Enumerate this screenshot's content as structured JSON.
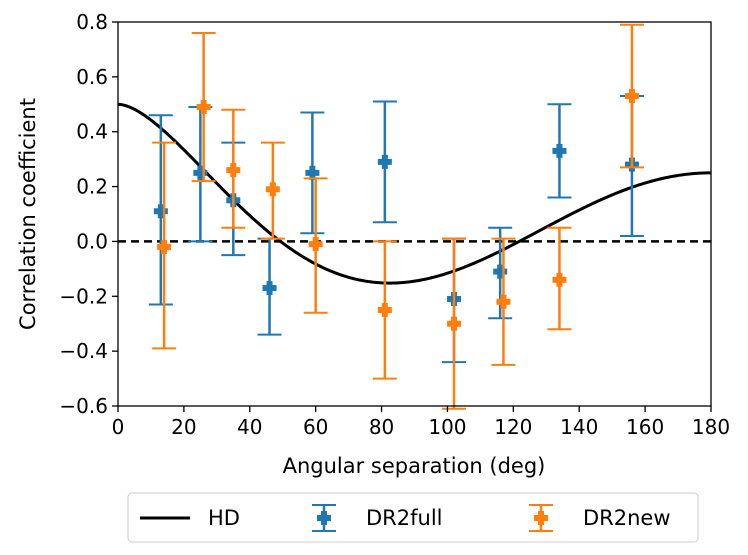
{
  "chart_data": {
    "type": "scatter",
    "xlabel": "Angular separation (deg)",
    "ylabel": "Correlation coefficient",
    "xlim": [
      0,
      180
    ],
    "ylim": [
      -0.6,
      0.8
    ],
    "xticks": [
      0,
      20,
      40,
      60,
      80,
      100,
      120,
      140,
      160,
      180
    ],
    "yticks": [
      -0.6,
      -0.4,
      -0.2,
      0.0,
      0.2,
      0.4,
      0.6,
      0.8
    ],
    "ytick_labels": [
      "−0.6",
      "−0.4",
      "−0.2",
      "0.0",
      "0.2",
      "0.4",
      "0.6",
      "0.8"
    ],
    "grid": false,
    "legend_position": "below",
    "reference_line": {
      "y": 0.0,
      "style": "dashed",
      "color": "#000000"
    },
    "series": [
      {
        "name": "HD",
        "kind": "curve",
        "color": "#000000",
        "function": "hellings-downs"
      },
      {
        "name": "DR2full",
        "kind": "errorbar",
        "color": "#1f77b4",
        "x": [
          13,
          25,
          35,
          46,
          59,
          81,
          102,
          116,
          134,
          156
        ],
        "y": [
          0.11,
          0.25,
          0.15,
          -0.17,
          0.25,
          0.29,
          -0.21,
          -0.11,
          0.33,
          0.28
        ],
        "yerr_low": [
          -0.23,
          0.0,
          -0.05,
          -0.34,
          0.03,
          0.07,
          -0.44,
          -0.28,
          0.16,
          0.02
        ],
        "yerr_high": [
          0.46,
          0.49,
          0.36,
          0.01,
          0.47,
          0.51,
          0.01,
          0.05,
          0.5,
          0.53
        ]
      },
      {
        "name": "DR2new",
        "kind": "errorbar",
        "color": "#ff7f0e",
        "x": [
          14,
          26,
          35,
          47,
          60,
          81,
          102,
          117,
          134,
          156
        ],
        "y": [
          -0.02,
          0.49,
          0.26,
          0.19,
          -0.01,
          -0.25,
          -0.3,
          -0.22,
          -0.14,
          0.53
        ],
        "yerr_low": [
          -0.39,
          0.22,
          0.05,
          0.01,
          -0.26,
          -0.5,
          -0.61,
          -0.45,
          -0.32,
          0.27
        ],
        "yerr_high": [
          0.36,
          0.76,
          0.48,
          0.36,
          0.23,
          0.0,
          0.01,
          0.01,
          0.05,
          0.79
        ]
      }
    ]
  }
}
